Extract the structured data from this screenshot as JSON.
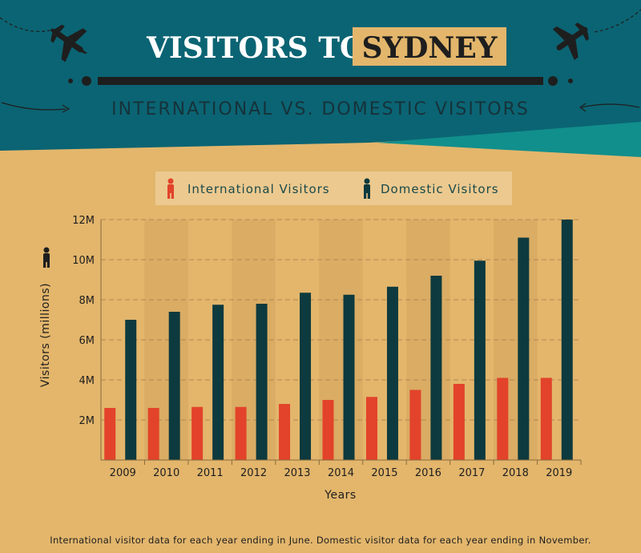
{
  "header": {
    "title_part1": "VISITORS TO",
    "title_part2": "SYDNEY",
    "subtitle": "INTERNATIONAL VS. DOMESTIC VISITORS"
  },
  "footnote": "International visitor data for each year ending in June. Domestic visitor data for each year ending in November.",
  "colors": {
    "header_bg": "#0b6473",
    "accent_teal": "#118f8c",
    "background": "#e3b66c",
    "international": "#e2432a",
    "domestic": "#0d3a3e",
    "title_box": "#e3b66c"
  },
  "icons": [
    "airplane-icon",
    "person-icon",
    "dashed-arrow-icon"
  ],
  "chart_data": {
    "type": "bar",
    "xlabel": "Years",
    "ylabel": "Visitors (millions)",
    "ylim": [
      0,
      12
    ],
    "yticks": [
      "2M",
      "4M",
      "6M",
      "8M",
      "10M",
      "12M"
    ],
    "ytick_values": [
      2,
      4,
      6,
      8,
      10,
      12
    ],
    "grid": true,
    "legend_position": "top-center",
    "categories": [
      "2009",
      "2010",
      "2011",
      "2012",
      "2013",
      "2014",
      "2015",
      "2016",
      "2017",
      "2018",
      "2019"
    ],
    "series": [
      {
        "name": "International Visitors",
        "values": [
          2.6,
          2.6,
          2.65,
          2.65,
          2.8,
          3.0,
          3.15,
          3.5,
          3.8,
          4.1,
          4.1
        ]
      },
      {
        "name": "Domestic Visitors",
        "values": [
          7.0,
          7.4,
          7.75,
          7.8,
          8.35,
          8.25,
          8.65,
          9.2,
          9.95,
          11.1,
          12.0
        ]
      }
    ]
  }
}
